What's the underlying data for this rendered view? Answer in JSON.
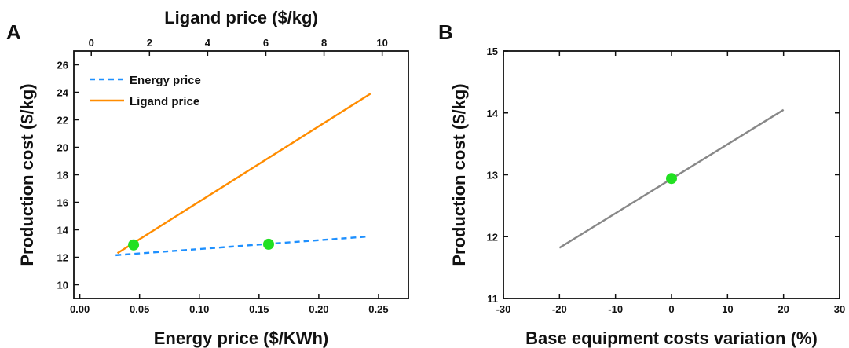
{
  "panels": {
    "a": {
      "label": "A"
    },
    "b": {
      "label": "B"
    }
  },
  "chart_data": [
    {
      "panel": "A",
      "type": "line",
      "ylabel": "Production cost ($/kg)",
      "ylim": [
        9,
        27
      ],
      "yticks": [
        10,
        12,
        14,
        16,
        18,
        20,
        22,
        24,
        26
      ],
      "xlabel": "Energy price ($/KWh)",
      "xlim": [
        -0.005,
        0.275
      ],
      "xticks": [
        0.0,
        0.05,
        0.1,
        0.15,
        0.2,
        0.25
      ],
      "xtick_labels": [
        "0.00",
        "0.05",
        "0.10",
        "0.15",
        "0.20",
        "0.25"
      ],
      "x2label": "Ligand price ($/kg)",
      "x2lim": [
        -0.6,
        10.9
      ],
      "x2ticks": [
        0,
        2,
        4,
        6,
        8,
        10
      ],
      "legend": "top-left",
      "series": [
        {
          "name": "Energy price",
          "axis": "bottom",
          "style": "dashed",
          "color": "#1e90ff",
          "x": [
            0.03,
            0.24
          ],
          "y": [
            12.15,
            13.5
          ]
        },
        {
          "name": "Ligand price",
          "axis": "top",
          "style": "solid",
          "color": "#ff8c00",
          "x": [
            0.9,
            9.6
          ],
          "y": [
            12.3,
            23.9
          ]
        }
      ],
      "markers": [
        {
          "axis": "bottom",
          "x": 0.045,
          "y": 12.9,
          "color": "#22e022"
        },
        {
          "axis": "bottom",
          "x": 0.158,
          "y": 12.95,
          "color": "#22e022"
        }
      ]
    },
    {
      "panel": "B",
      "type": "line",
      "ylabel": "Production cost ($/kg)",
      "ylim": [
        11,
        15
      ],
      "yticks": [
        11,
        12,
        13,
        14,
        15
      ],
      "xlabel": "Base equipment costs variation (%)",
      "xlim": [
        -30,
        30
      ],
      "xticks": [
        -30,
        -20,
        -10,
        0,
        10,
        20,
        30
      ],
      "series": [
        {
          "color": "#888888",
          "style": "solid",
          "x": [
            -20,
            20
          ],
          "y": [
            11.82,
            14.05
          ]
        }
      ],
      "markers": [
        {
          "x": 0,
          "y": 12.94,
          "color": "#22e022"
        }
      ]
    }
  ]
}
